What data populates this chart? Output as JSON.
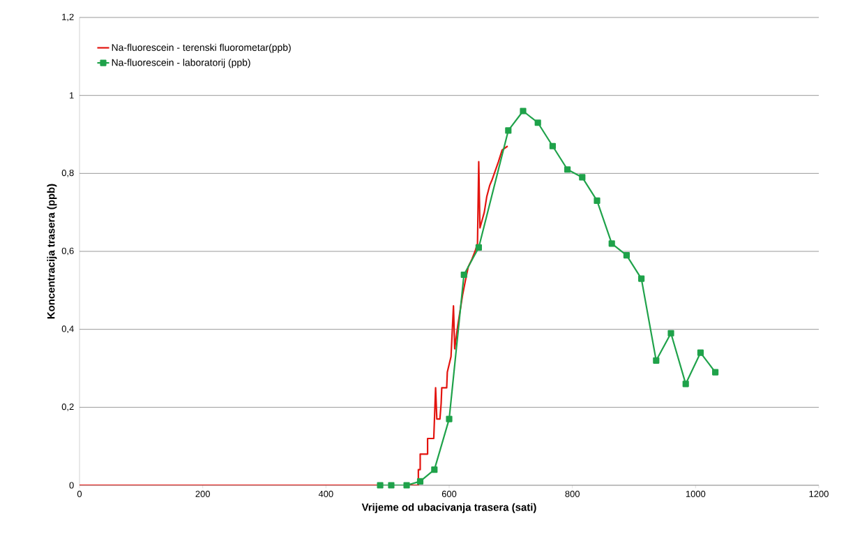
{
  "chart_data": {
    "type": "line",
    "xlabel": "Vrijeme od ubacivanja trasera (sati)",
    "ylabel": "Koncentracija trasera (ppb)",
    "xlim": [
      0,
      1200
    ],
    "xticks": [
      0,
      200,
      400,
      600,
      800,
      1000,
      1200
    ],
    "ylim": [
      0,
      1.2
    ],
    "yticks": [
      0,
      {
        "value": 0.2,
        "label": "0,2"
      },
      {
        "value": 0.4,
        "label": "0,4"
      },
      {
        "value": 0.6,
        "label": "0,6"
      },
      {
        "value": 0.8,
        "label": "0,8"
      },
      1,
      {
        "value": 1.2,
        "label": "1,2"
      }
    ],
    "grid": "y",
    "legend": "top left",
    "series": [
      {
        "name": "Na-fluorescein - terenski fluorometar(ppb)",
        "color": "#e3140f",
        "marker": "none",
        "x": [
          0,
          550,
          550,
          553,
          553,
          565,
          565,
          575,
          578,
          580,
          585,
          587,
          588,
          596,
          597,
          603,
          607,
          609,
          614,
          619,
          622,
          627,
          631,
          637,
          642,
          646,
          648,
          650,
          657,
          661,
          666,
          670,
          680,
          686,
          695
        ],
        "values": [
          0,
          0,
          0.04,
          0.04,
          0.08,
          0.08,
          0.12,
          0.12,
          0.25,
          0.17,
          0.17,
          0.21,
          0.25,
          0.25,
          0.29,
          0.33,
          0.46,
          0.35,
          0.41,
          0.46,
          0.49,
          0.53,
          0.56,
          0.58,
          0.6,
          0.62,
          0.83,
          0.66,
          0.7,
          0.74,
          0.77,
          0.785,
          0.83,
          0.86,
          0.87
        ]
      },
      {
        "name": "Na-fluorescein - laboratorij (ppb)",
        "color": "#1fa24a",
        "marker": "square",
        "x": [
          488,
          506,
          531,
          553,
          576,
          600,
          624,
          648,
          696,
          720,
          744,
          768,
          792,
          816,
          840,
          864,
          888,
          912,
          936,
          960,
          984,
          1008,
          1032
        ],
        "values": [
          0,
          0,
          0,
          0.01,
          0.04,
          0.17,
          0.54,
          0.61,
          0.91,
          0.96,
          0.93,
          0.87,
          0.81,
          0.79,
          0.73,
          0.62,
          0.59,
          0.53,
          0.32,
          0.39,
          0.26,
          0.34,
          0.29
        ]
      }
    ]
  }
}
